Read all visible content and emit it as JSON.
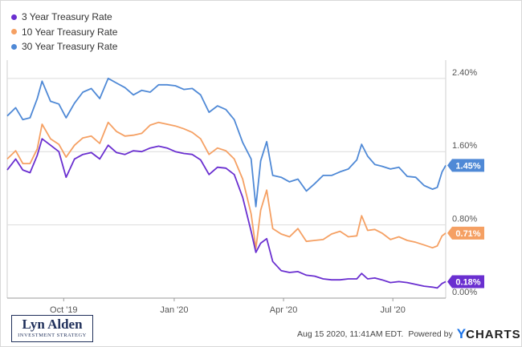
{
  "legend": [
    {
      "name": "3 Year Treasury Rate",
      "color": "#6a2fd0"
    },
    {
      "name": "10 Year Treasury Rate",
      "color": "#f5a063"
    },
    {
      "name": "30 Year Treasury Rate",
      "color": "#4f89d6"
    }
  ],
  "logo": {
    "main": "Lyn Alden",
    "sub": "INVESTMENT STRATEGY"
  },
  "footer": {
    "timestamp": "Aug 15 2020, 11:41AM EDT.",
    "powered": "Powered by",
    "brand_y": "Y",
    "brand_rest": "CHARTS"
  },
  "chart_data": {
    "type": "line",
    "x_axis": {
      "type": "time",
      "range": [
        "2019-08-15",
        "2020-08-14"
      ],
      "ticks": [
        "Oct '19",
        "Jan '20",
        "Apr '20",
        "Jul '20"
      ]
    },
    "y_axis": {
      "position": "right",
      "range": [
        0.0,
        2.6
      ],
      "ticks": [
        "0.00%",
        "0.80%",
        "1.60%",
        "2.40%"
      ]
    },
    "grid": "horizontal",
    "series": [
      {
        "name": "30 Year Treasury Rate",
        "color": "#4f89d6",
        "last_label": "1.45%",
        "points": [
          [
            "2019-08-15",
            1.99
          ],
          [
            "2019-08-22",
            2.08
          ],
          [
            "2019-08-28",
            1.95
          ],
          [
            "2019-09-03",
            1.97
          ],
          [
            "2019-09-09",
            2.18
          ],
          [
            "2019-09-13",
            2.37
          ],
          [
            "2019-09-20",
            2.15
          ],
          [
            "2019-09-27",
            2.12
          ],
          [
            "2019-10-03",
            1.97
          ],
          [
            "2019-10-10",
            2.13
          ],
          [
            "2019-10-17",
            2.25
          ],
          [
            "2019-10-24",
            2.29
          ],
          [
            "2019-10-31",
            2.18
          ],
          [
            "2019-11-07",
            2.4
          ],
          [
            "2019-11-14",
            2.35
          ],
          [
            "2019-11-21",
            2.3
          ],
          [
            "2019-11-28",
            2.22
          ],
          [
            "2019-12-05",
            2.27
          ],
          [
            "2019-12-12",
            2.25
          ],
          [
            "2019-12-19",
            2.33
          ],
          [
            "2019-12-26",
            2.33
          ],
          [
            "2020-01-02",
            2.32
          ],
          [
            "2020-01-09",
            2.28
          ],
          [
            "2020-01-16",
            2.29
          ],
          [
            "2020-01-23",
            2.22
          ],
          [
            "2020-01-30",
            2.03
          ],
          [
            "2020-02-06",
            2.1
          ],
          [
            "2020-02-13",
            2.06
          ],
          [
            "2020-02-20",
            1.95
          ],
          [
            "2020-02-27",
            1.7
          ],
          [
            "2020-03-05",
            1.52
          ],
          [
            "2020-03-09",
            1.0
          ],
          [
            "2020-03-13",
            1.5
          ],
          [
            "2020-03-18",
            1.71
          ],
          [
            "2020-03-23",
            1.34
          ],
          [
            "2020-03-30",
            1.32
          ],
          [
            "2020-04-06",
            1.27
          ],
          [
            "2020-04-13",
            1.3
          ],
          [
            "2020-04-20",
            1.17
          ],
          [
            "2020-04-27",
            1.25
          ],
          [
            "2020-05-04",
            1.34
          ],
          [
            "2020-05-11",
            1.34
          ],
          [
            "2020-05-18",
            1.38
          ],
          [
            "2020-05-25",
            1.41
          ],
          [
            "2020-06-01",
            1.51
          ],
          [
            "2020-06-05",
            1.68
          ],
          [
            "2020-06-10",
            1.55
          ],
          [
            "2020-06-16",
            1.46
          ],
          [
            "2020-06-22",
            1.44
          ],
          [
            "2020-06-29",
            1.41
          ],
          [
            "2020-07-06",
            1.43
          ],
          [
            "2020-07-13",
            1.33
          ],
          [
            "2020-07-20",
            1.32
          ],
          [
            "2020-07-27",
            1.23
          ],
          [
            "2020-08-03",
            1.19
          ],
          [
            "2020-08-07",
            1.21
          ],
          [
            "2020-08-11",
            1.38
          ],
          [
            "2020-08-14",
            1.45
          ]
        ]
      },
      {
        "name": "10 Year Treasury Rate",
        "color": "#f5a063",
        "last_label": "0.71%",
        "points": [
          [
            "2019-08-15",
            1.52
          ],
          [
            "2019-08-22",
            1.61
          ],
          [
            "2019-08-28",
            1.47
          ],
          [
            "2019-09-03",
            1.47
          ],
          [
            "2019-09-09",
            1.63
          ],
          [
            "2019-09-13",
            1.9
          ],
          [
            "2019-09-20",
            1.74
          ],
          [
            "2019-09-27",
            1.68
          ],
          [
            "2019-10-03",
            1.54
          ],
          [
            "2019-10-10",
            1.67
          ],
          [
            "2019-10-17",
            1.75
          ],
          [
            "2019-10-24",
            1.77
          ],
          [
            "2019-10-31",
            1.69
          ],
          [
            "2019-11-07",
            1.92
          ],
          [
            "2019-11-14",
            1.82
          ],
          [
            "2019-11-21",
            1.77
          ],
          [
            "2019-11-28",
            1.78
          ],
          [
            "2019-12-05",
            1.8
          ],
          [
            "2019-12-12",
            1.89
          ],
          [
            "2019-12-19",
            1.92
          ],
          [
            "2019-12-26",
            1.9
          ],
          [
            "2020-01-02",
            1.88
          ],
          [
            "2020-01-09",
            1.85
          ],
          [
            "2020-01-16",
            1.81
          ],
          [
            "2020-01-23",
            1.74
          ],
          [
            "2020-01-30",
            1.57
          ],
          [
            "2020-02-06",
            1.64
          ],
          [
            "2020-02-13",
            1.61
          ],
          [
            "2020-02-20",
            1.52
          ],
          [
            "2020-02-27",
            1.3
          ],
          [
            "2020-03-05",
            0.92
          ],
          [
            "2020-03-09",
            0.54
          ],
          [
            "2020-03-13",
            0.96
          ],
          [
            "2020-03-18",
            1.18
          ],
          [
            "2020-03-23",
            0.76
          ],
          [
            "2020-03-30",
            0.7
          ],
          [
            "2020-04-06",
            0.67
          ],
          [
            "2020-04-13",
            0.76
          ],
          [
            "2020-04-20",
            0.62
          ],
          [
            "2020-04-27",
            0.63
          ],
          [
            "2020-05-04",
            0.64
          ],
          [
            "2020-05-11",
            0.7
          ],
          [
            "2020-05-18",
            0.73
          ],
          [
            "2020-05-25",
            0.67
          ],
          [
            "2020-06-01",
            0.68
          ],
          [
            "2020-06-05",
            0.9
          ],
          [
            "2020-06-10",
            0.74
          ],
          [
            "2020-06-16",
            0.75
          ],
          [
            "2020-06-22",
            0.71
          ],
          [
            "2020-06-29",
            0.64
          ],
          [
            "2020-07-06",
            0.67
          ],
          [
            "2020-07-13",
            0.63
          ],
          [
            "2020-07-20",
            0.61
          ],
          [
            "2020-07-27",
            0.58
          ],
          [
            "2020-08-03",
            0.55
          ],
          [
            "2020-08-07",
            0.57
          ],
          [
            "2020-08-11",
            0.68
          ],
          [
            "2020-08-14",
            0.71
          ]
        ]
      },
      {
        "name": "3 Year Treasury Rate",
        "color": "#6a2fd0",
        "last_label": "0.18%",
        "points": [
          [
            "2019-08-15",
            1.4
          ],
          [
            "2019-08-22",
            1.52
          ],
          [
            "2019-08-28",
            1.4
          ],
          [
            "2019-09-03",
            1.37
          ],
          [
            "2019-09-09",
            1.56
          ],
          [
            "2019-09-13",
            1.74
          ],
          [
            "2019-09-20",
            1.67
          ],
          [
            "2019-09-27",
            1.6
          ],
          [
            "2019-10-03",
            1.32
          ],
          [
            "2019-10-10",
            1.52
          ],
          [
            "2019-10-17",
            1.57
          ],
          [
            "2019-10-24",
            1.59
          ],
          [
            "2019-10-31",
            1.52
          ],
          [
            "2019-11-07",
            1.67
          ],
          [
            "2019-11-14",
            1.59
          ],
          [
            "2019-11-21",
            1.57
          ],
          [
            "2019-11-28",
            1.61
          ],
          [
            "2019-12-05",
            1.6
          ],
          [
            "2019-12-12",
            1.64
          ],
          [
            "2019-12-19",
            1.66
          ],
          [
            "2019-12-26",
            1.64
          ],
          [
            "2020-01-02",
            1.6
          ],
          [
            "2020-01-09",
            1.58
          ],
          [
            "2020-01-16",
            1.57
          ],
          [
            "2020-01-23",
            1.51
          ],
          [
            "2020-01-30",
            1.35
          ],
          [
            "2020-02-06",
            1.43
          ],
          [
            "2020-02-13",
            1.42
          ],
          [
            "2020-02-20",
            1.35
          ],
          [
            "2020-02-27",
            1.1
          ],
          [
            "2020-03-05",
            0.73
          ],
          [
            "2020-03-09",
            0.5
          ],
          [
            "2020-03-13",
            0.6
          ],
          [
            "2020-03-18",
            0.65
          ],
          [
            "2020-03-23",
            0.4
          ],
          [
            "2020-03-30",
            0.3
          ],
          [
            "2020-04-06",
            0.28
          ],
          [
            "2020-04-13",
            0.29
          ],
          [
            "2020-04-20",
            0.25
          ],
          [
            "2020-04-27",
            0.24
          ],
          [
            "2020-05-04",
            0.21
          ],
          [
            "2020-05-11",
            0.2
          ],
          [
            "2020-05-18",
            0.2
          ],
          [
            "2020-05-25",
            0.21
          ],
          [
            "2020-06-01",
            0.21
          ],
          [
            "2020-06-05",
            0.27
          ],
          [
            "2020-06-10",
            0.21
          ],
          [
            "2020-06-16",
            0.22
          ],
          [
            "2020-06-22",
            0.2
          ],
          [
            "2020-06-29",
            0.17
          ],
          [
            "2020-07-06",
            0.18
          ],
          [
            "2020-07-13",
            0.17
          ],
          [
            "2020-07-20",
            0.15
          ],
          [
            "2020-07-27",
            0.13
          ],
          [
            "2020-08-03",
            0.12
          ],
          [
            "2020-08-07",
            0.11
          ],
          [
            "2020-08-11",
            0.16
          ],
          [
            "2020-08-14",
            0.18
          ]
        ]
      }
    ]
  }
}
